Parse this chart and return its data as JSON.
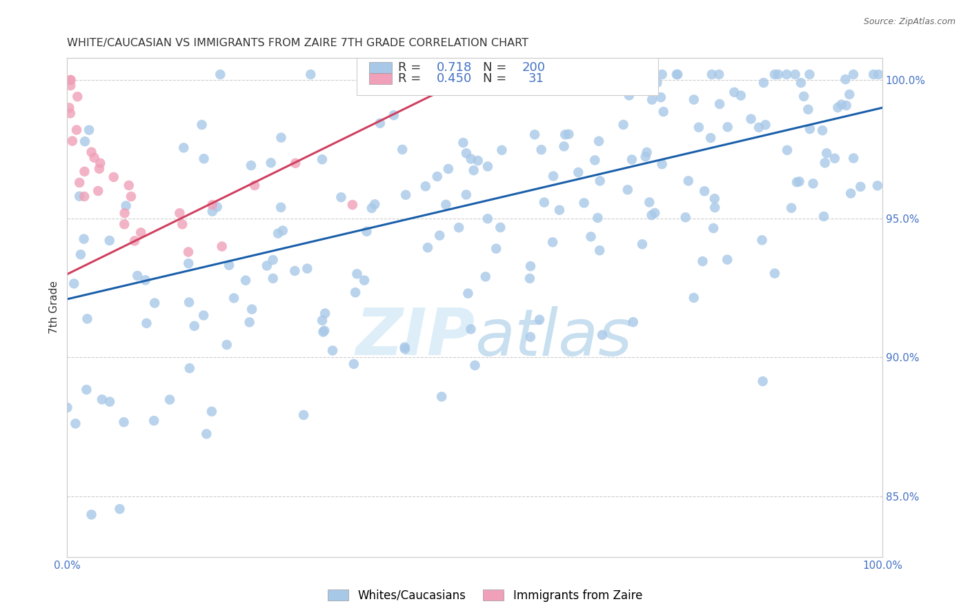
{
  "title": "WHITE/CAUCASIAN VS IMMIGRANTS FROM ZAIRE 7TH GRADE CORRELATION CHART",
  "source": "Source: ZipAtlas.com",
  "ylabel": "7th Grade",
  "right_yticks": [
    85.0,
    90.0,
    95.0,
    100.0
  ],
  "xlim": [
    0.0,
    1.0
  ],
  "ylim": [
    0.828,
    1.008
  ],
  "blue_R": 0.718,
  "blue_N": 200,
  "pink_R": 0.45,
  "pink_N": 31,
  "blue_color": "#a8c8e8",
  "pink_color": "#f0a0b8",
  "blue_line_color": "#1a5faa",
  "pink_line_color": "#d04060",
  "watermark_zip": "ZIP",
  "watermark_atlas": "atlas",
  "legend_label_blue": "Whites/Caucasians",
  "legend_label_pink": "Immigrants from Zaire",
  "blue_line_x0": 0.0,
  "blue_line_y0": 0.921,
  "blue_line_x1": 1.0,
  "blue_line_y1": 0.99,
  "pink_line_x0": 0.0,
  "pink_line_y0": 0.93,
  "pink_line_x1": 0.5,
  "pink_line_y1": 1.002
}
